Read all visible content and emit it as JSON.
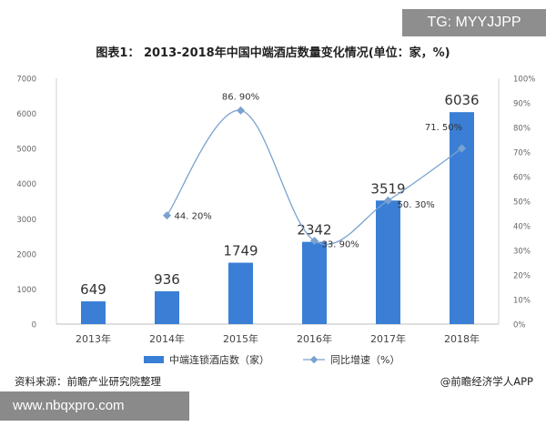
{
  "tag": "TG: MYYJJPP",
  "url": "www.nbqxpro.com",
  "footer": {
    "source": "资料来源：前瞻产业研究院整理",
    "brand": "@前瞻经济学人APP"
  },
  "chart_data": {
    "type": "bar",
    "title": "图表1： 2013-2018年中国中端酒店数量变化情况(单位：家，%)",
    "categories": [
      "2013年",
      "2014年",
      "2015年",
      "2016年",
      "2017年",
      "2018年"
    ],
    "series": [
      {
        "name": "中端连锁酒店数（家）",
        "type": "bar",
        "axis": "left",
        "values": [
          649,
          936,
          1749,
          2342,
          3519,
          6036
        ],
        "labels": [
          "649",
          "936",
          "1749",
          "2342",
          "3519",
          "6036"
        ],
        "color": "#3a7fd5"
      },
      {
        "name": "同比增速（%）",
        "type": "line",
        "axis": "right",
        "values": [
          null,
          44.2,
          86.9,
          33.9,
          50.3,
          71.5
        ],
        "labels": [
          "",
          "44. 20%",
          "86. 90%",
          "33. 90%",
          "50. 30%",
          "71. 50%"
        ],
        "color": "#7aa2cf"
      }
    ],
    "y_left": {
      "ylim": [
        0,
        7000
      ],
      "ticks": [
        0,
        1000,
        2000,
        3000,
        4000,
        5000,
        6000,
        7000
      ],
      "tick_labels": [
        "0",
        "1000",
        "2000",
        "3000",
        "4000",
        "5000",
        "6000",
        "7000"
      ]
    },
    "y_right": {
      "ylim": [
        0,
        100
      ],
      "ticks": [
        0,
        10,
        20,
        30,
        40,
        50,
        60,
        70,
        80,
        90,
        100
      ],
      "tick_labels": [
        "0%",
        "10%",
        "20%",
        "30%",
        "40%",
        "50%",
        "60%",
        "70%",
        "80%",
        "90%",
        "100%"
      ]
    },
    "grid": false,
    "legend_position": "bottom"
  }
}
